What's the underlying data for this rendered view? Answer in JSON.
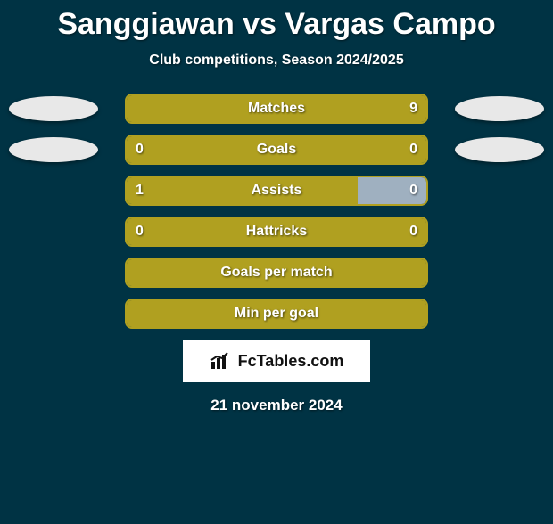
{
  "title": "Sanggiawan vs Vargas Campo",
  "subtitle": "Club competitions, Season 2024/2025",
  "date": "21 november 2024",
  "brand": "FcTables.com",
  "colors": {
    "background": "#003344",
    "bar_left": "#b0a020",
    "bar_right": "#9fb0c0",
    "bar_border": "#b0a020",
    "ellipse": "#e8e8e8",
    "text": "#ffffff"
  },
  "rows": [
    {
      "label": "Matches",
      "left_value": "",
      "right_value": "9",
      "left_pct": 100,
      "right_pct": 0,
      "show_ellipses": true,
      "show_right_value": true,
      "show_left_value": false
    },
    {
      "label": "Goals",
      "left_value": "0",
      "right_value": "0",
      "left_pct": 100,
      "right_pct": 0,
      "show_ellipses": true,
      "show_right_value": true,
      "show_left_value": true
    },
    {
      "label": "Assists",
      "left_value": "1",
      "right_value": "0",
      "left_pct": 77,
      "right_pct": 23,
      "show_ellipses": false,
      "show_right_value": true,
      "show_left_value": true
    },
    {
      "label": "Hattricks",
      "left_value": "0",
      "right_value": "0",
      "left_pct": 100,
      "right_pct": 0,
      "show_ellipses": false,
      "show_right_value": true,
      "show_left_value": true
    },
    {
      "label": "Goals per match",
      "left_value": "",
      "right_value": "",
      "left_pct": 100,
      "right_pct": 0,
      "show_ellipses": false,
      "show_right_value": false,
      "show_left_value": false
    },
    {
      "label": "Min per goal",
      "left_value": "",
      "right_value": "",
      "left_pct": 100,
      "right_pct": 0,
      "show_ellipses": false,
      "show_right_value": false,
      "show_left_value": false
    }
  ]
}
